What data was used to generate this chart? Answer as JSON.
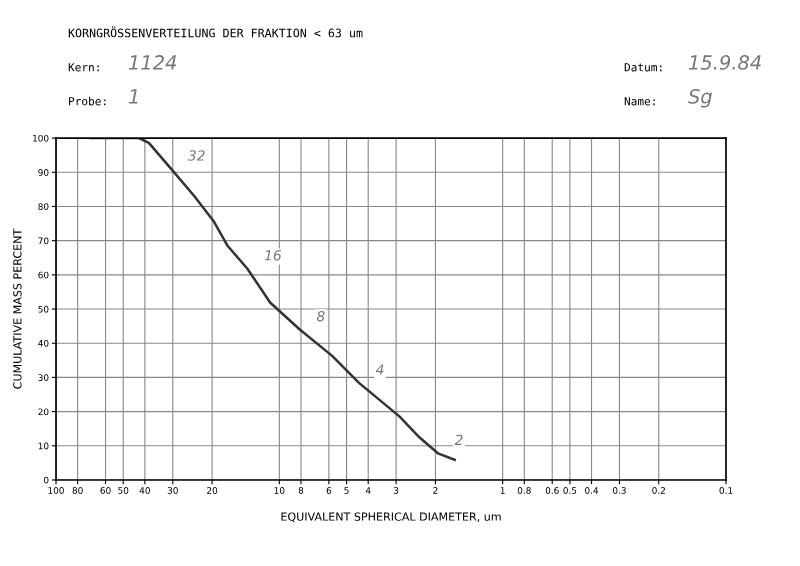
{
  "chart_data": {
    "type": "line",
    "title": "KORNGRÖSSENVERTEILUNG DER FRAKTION < 63 um",
    "xlabel": "EQUIVALENT SPHERICAL DIAMETER, um",
    "ylabel": "CUMULATIVE MASS PERCENT",
    "annotations": [
      "Kern:",
      "1124",
      "Probe:",
      "1",
      "Datum:",
      "15.9.84",
      "Name:",
      "Sg",
      {
        "text": "32",
        "x": 30.5,
        "y": 91
      },
      {
        "text": "16",
        "x": 13.9,
        "y": 61.8
      },
      {
        "text": "8",
        "x": 8.1,
        "y": 44
      },
      {
        "text": "4",
        "x": 4.4,
        "y": 28.4
      },
      {
        "text": "2",
        "x": 1.95,
        "y": 7.8
      }
    ],
    "log": "x",
    "xlim": [
      100,
      0.1
    ],
    "xticks": [
      100,
      80,
      60,
      50,
      40,
      30,
      20,
      10,
      8,
      6,
      5,
      4,
      3,
      2,
      1,
      0.8,
      0.6,
      0.5,
      0.4,
      0.3,
      0.2,
      0.1
    ],
    "ylim": [
      0,
      100
    ],
    "yticks": [
      0,
      10,
      20,
      30,
      40,
      50,
      60,
      70,
      80,
      90,
      100
    ],
    "grid": true,
    "series": [
      {
        "color": "#333333",
        "x": [
          70,
          60,
          50,
          42.5,
          38.4,
          30.5,
          24,
          19.6,
          17.1,
          13.9,
          11.0,
          8.1,
          5.8,
          4.4,
          2.9,
          2.39,
          1.95,
          1.64
        ],
        "values": [
          100,
          100,
          100,
          100,
          98.6,
          91,
          83,
          75.5,
          68.6,
          61.8,
          51.9,
          44,
          36.3,
          28.4,
          18.6,
          12.8,
          7.8,
          5.9
        ]
      }
    ]
  }
}
